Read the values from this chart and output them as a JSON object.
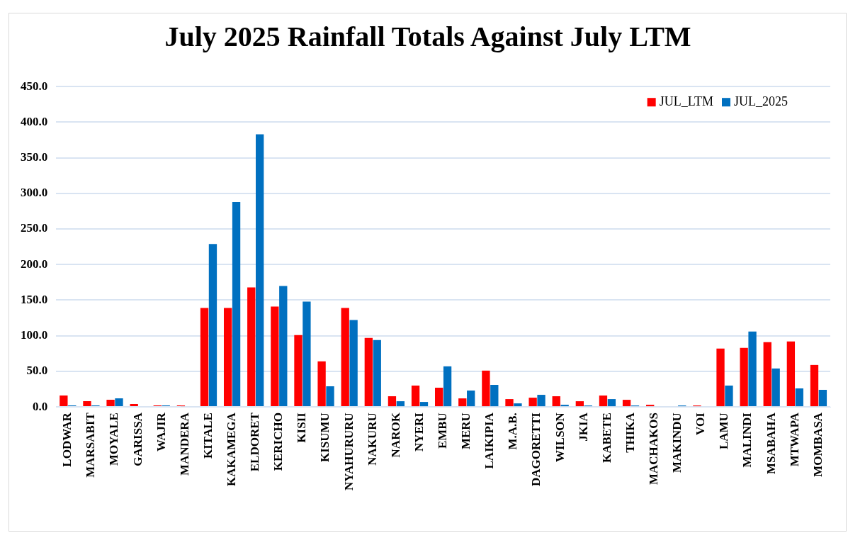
{
  "chart_data": {
    "type": "bar",
    "title": "July 2025 Rainfall Totals Against July LTM",
    "categories": [
      "LODWAR",
      "MARSABIT",
      "MOYALE",
      "GARISSA",
      "WAJIR",
      "MANDERA",
      "KITALE",
      "KAKAMEGA",
      "ELDORET",
      "KERICHO",
      "KISII",
      "KISUMU",
      "NYAHURURU",
      "NAKURU",
      "NAROK",
      "NYERI",
      "EMBU",
      "MERU",
      "LAIKIPIA",
      "M.A.B.",
      "DAGORETTI",
      "WILSON",
      "JKIA",
      "KABETE",
      "THIKA",
      "MACHAKOS",
      "MAKINDU",
      "VOI",
      "LAMU",
      "MALINDI",
      "MSABAHA",
      "MTWAPA",
      "MOMBASA"
    ],
    "series": [
      {
        "name": "JUL_LTM",
        "color": "#ff0000",
        "values": [
          16,
          8,
          10,
          4,
          2,
          2,
          139,
          139,
          168,
          141,
          101,
          64,
          139,
          97,
          15,
          30,
          27,
          12,
          51,
          11,
          13,
          15,
          8,
          16,
          10,
          3,
          0,
          2,
          82,
          83,
          91,
          92,
          59
        ]
      },
      {
        "name": "JUL_2025",
        "color": "#0070c0",
        "values": [
          2,
          2,
          12,
          0,
          2,
          0,
          229,
          288,
          383,
          170,
          148,
          29,
          122,
          94,
          8,
          7,
          57,
          23,
          31,
          5,
          17,
          3,
          2,
          11,
          2,
          0,
          2,
          0,
          30,
          106,
          54,
          26,
          24
        ]
      }
    ],
    "ylim": [
      0,
      450
    ],
    "yticks": [
      {
        "value": 0,
        "label": "0.0"
      },
      {
        "value": 50,
        "label": "50.0"
      },
      {
        "value": 100,
        "label": "100.0"
      },
      {
        "value": 150,
        "label": "150.0"
      },
      {
        "value": 200,
        "label": "200.0"
      },
      {
        "value": 250,
        "label": "250.0"
      },
      {
        "value": 300,
        "label": "300.0"
      },
      {
        "value": 350,
        "label": "350.0"
      },
      {
        "value": 400,
        "label": "400.0"
      },
      {
        "value": 450,
        "label": "450.0"
      }
    ],
    "grid": "y",
    "legend": "top right"
  }
}
